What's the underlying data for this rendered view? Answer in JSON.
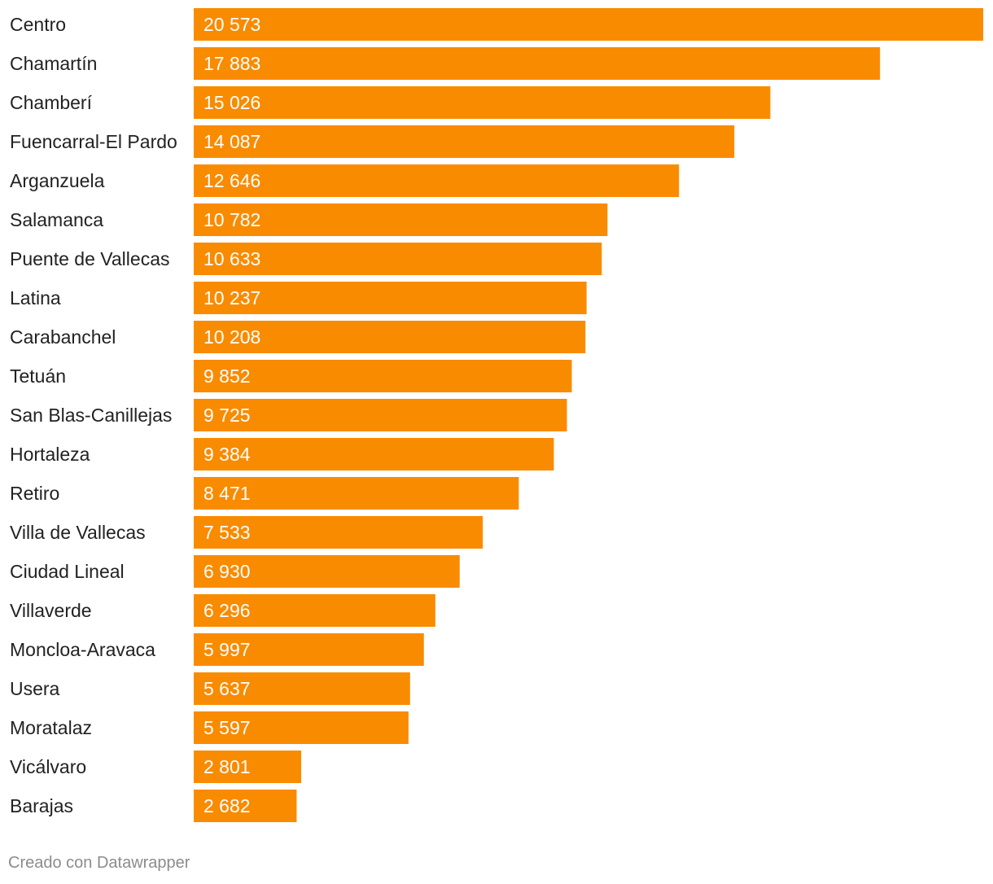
{
  "chart_data": {
    "type": "bar",
    "orientation": "horizontal",
    "title": "",
    "xlabel": "",
    "ylabel": "",
    "xlim": [
      0,
      20573
    ],
    "grid": false,
    "bar_color": "#f98b00",
    "categories": [
      "Centro",
      "Chamartín",
      "Chamberí",
      "Fuencarral-El Pardo",
      "Arganzuela",
      "Salamanca",
      "Puente de Vallecas",
      "Latina",
      "Carabanchel",
      "Tetuán",
      "San Blas-Canillejas",
      "Hortaleza",
      "Retiro",
      "Villa de Vallecas",
      "Ciudad Lineal",
      "Villaverde",
      "Moncloa-Aravaca",
      "Usera",
      "Moratalaz",
      "Vicálvaro",
      "Barajas"
    ],
    "values": [
      20573,
      17883,
      15026,
      14087,
      12646,
      10782,
      10633,
      10237,
      10208,
      9852,
      9725,
      9384,
      8471,
      7533,
      6930,
      6296,
      5997,
      5637,
      5597,
      2801,
      2682
    ],
    "value_labels": [
      "20 573",
      "17 883",
      "15 026",
      "14 087",
      "12 646",
      "10 782",
      "10 633",
      "10 237",
      "10 208",
      "9 852",
      "9 725",
      "9 384",
      "8 471",
      "7 533",
      "6 930",
      "6 296",
      "5 997",
      "5 637",
      "5 597",
      "2 801",
      "2 682"
    ]
  },
  "footer": {
    "credit": "Creado con Datawrapper"
  }
}
